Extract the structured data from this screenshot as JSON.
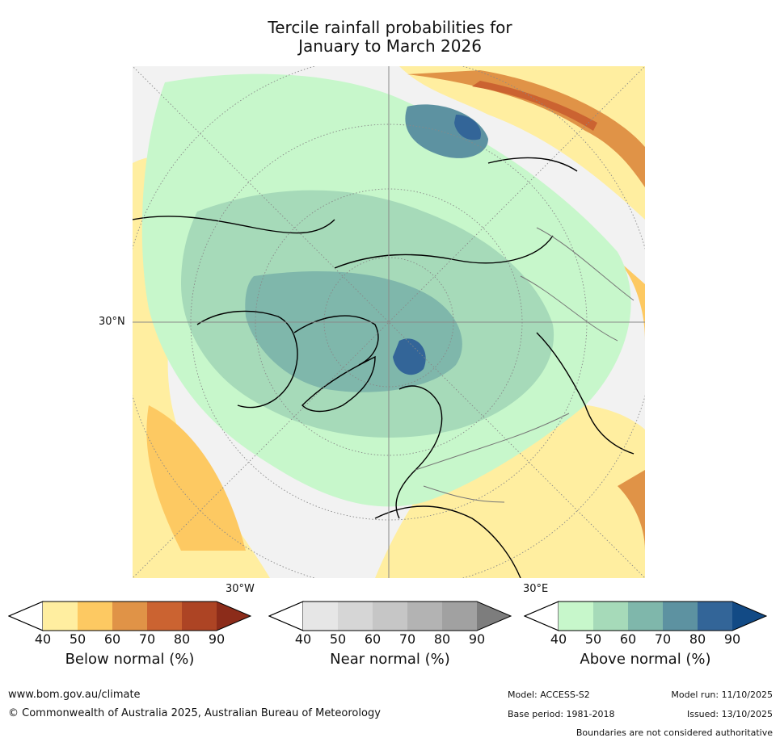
{
  "title_line1": "Tercile rainfall probabilities for",
  "title_line2": "January to March 2026",
  "map": {
    "lat_label": "30°N",
    "lon_labels": {
      "west": "30°W",
      "east": "30°E"
    }
  },
  "legends": [
    {
      "id": "below",
      "label": "Below normal (%)",
      "ticks": [
        "40",
        "50",
        "60",
        "70",
        "80",
        "90"
      ],
      "colors": [
        "#ffeea0",
        "#fdc962",
        "#e09347",
        "#cb6331",
        "#ad4424",
        "#8c2c1a"
      ]
    },
    {
      "id": "near",
      "label": "Near normal (%)",
      "ticks": [
        "40",
        "50",
        "60",
        "70",
        "80",
        "90"
      ],
      "colors": [
        "#e6e6e6",
        "#d6d6d6",
        "#c6c6c6",
        "#b3b3b3",
        "#a1a1a1",
        "#7d7d7d"
      ]
    },
    {
      "id": "above",
      "label": "Above normal (%)",
      "ticks": [
        "40",
        "50",
        "60",
        "70",
        "80",
        "90"
      ],
      "colors": [
        "#c7f7cb",
        "#a6dab9",
        "#7fb7ab",
        "#5d92a1",
        "#336598",
        "#124a85"
      ]
    }
  ],
  "footer": {
    "website": "www.bom.gov.au/climate",
    "copyright": "© Commonwealth of Australia 2025, Australian Bureau of Meteorology",
    "model": "Model: ACCESS-S2",
    "base_period": "Base period: 1981-2018",
    "model_run": "Model run: 11/10/2025",
    "issued": "Issued: 13/10/2025",
    "disclaimer": "Boundaries are not considered authoritative"
  }
}
